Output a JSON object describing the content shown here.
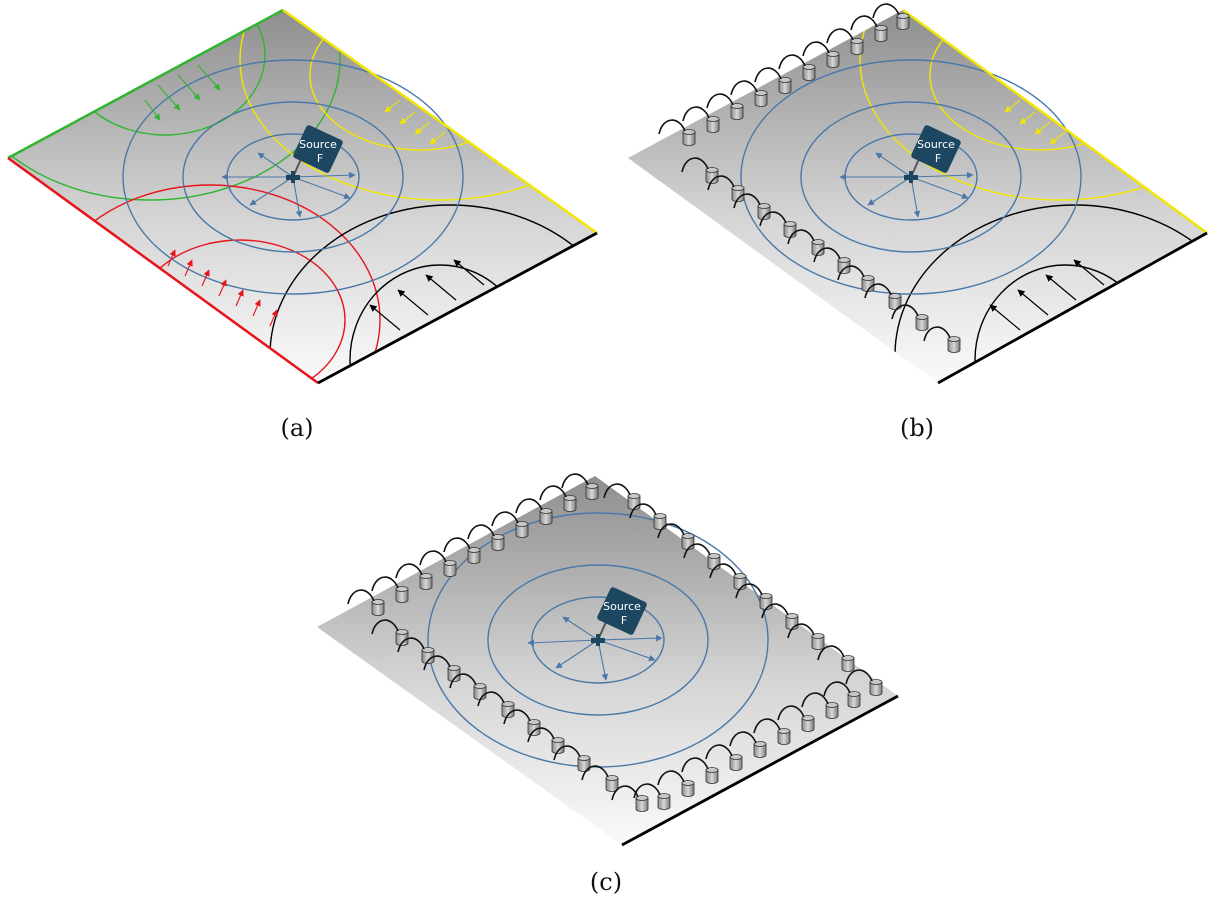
{
  "figure": {
    "panels": [
      {
        "id": "a",
        "caption": "(a)",
        "source_line1": "Source",
        "source_line2": "F",
        "edges": [
          "green",
          "yellow",
          "red",
          "black"
        ],
        "boundary_type": "reflecting"
      },
      {
        "id": "b",
        "caption": "(b)",
        "source_line1": "Source",
        "source_line2": "F",
        "edges": [
          "sensors",
          "yellow",
          "sensors",
          "black"
        ],
        "boundary_type": "mixed"
      },
      {
        "id": "c",
        "caption": "(c)",
        "source_line1": "Source",
        "source_line2": "F",
        "edges": [
          "sensors",
          "sensors",
          "sensors",
          "sensors"
        ],
        "boundary_type": "absorbing"
      }
    ]
  },
  "colors": {
    "green": "#2fb52f",
    "yellow": "#f2e600",
    "red": "#e8141c",
    "black": "#000000",
    "wave": "#4a78a8",
    "source_box": "#1d4660"
  },
  "icons": {
    "source": "camera-box-icon",
    "sensor": "cylinder-sensor-icon"
  }
}
